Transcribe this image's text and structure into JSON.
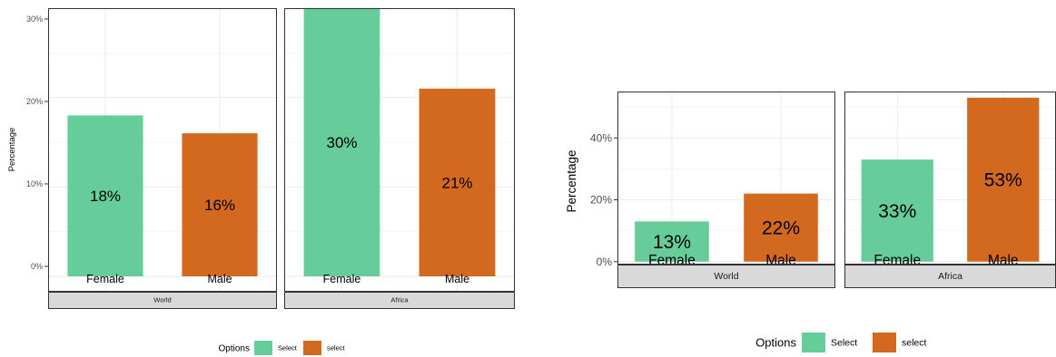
{
  "charts": [
    {
      "chart_data": {
        "type": "bar",
        "ylabel": "Percentage",
        "ylim": [
          0,
          30
        ],
        "yticks": [
          "0%",
          "10%",
          "20%",
          "30%"
        ],
        "ytick_values": [
          0,
          10,
          20,
          30
        ],
        "legend_title": "Options",
        "legend_placement": "bottom",
        "legend": [
          {
            "label": "Select",
            "color": "#66CC99"
          },
          {
            "label": "select",
            "color": "#D2691E"
          }
        ],
        "panels": [
          {
            "strip": "World",
            "categories": [
              "Female",
              "Male"
            ],
            "values": [
              18,
              16
            ],
            "labels": [
              "18%",
              "16%"
            ],
            "colors": [
              "#66CC99",
              "#D2691E"
            ]
          },
          {
            "strip": "Africa",
            "categories": [
              "Female",
              "Male"
            ],
            "values": [
              30,
              21
            ],
            "labels": [
              "30%",
              "21%"
            ],
            "colors": [
              "#66CC99",
              "#D2691E"
            ]
          }
        ]
      }
    },
    {
      "chart_data": {
        "type": "bar",
        "ylabel": "Percentage",
        "ylim": [
          -3,
          55
        ],
        "yticks": [
          "0%",
          "20%",
          "40%"
        ],
        "ytick_values": [
          0,
          20,
          40
        ],
        "legend_title": "Options",
        "legend_placement": "bottom",
        "legend": [
          {
            "label": "Select",
            "color": "#66CC99"
          },
          {
            "label": "select",
            "color": "#D2691E"
          }
        ],
        "panels": [
          {
            "strip": "World",
            "categories": [
              "Female",
              "Male"
            ],
            "values": [
              13,
              22
            ],
            "labels": [
              "13%",
              "22%"
            ],
            "colors": [
              "#66CC99",
              "#D2691E"
            ]
          },
          {
            "strip": "Africa",
            "categories": [
              "Female",
              "Male"
            ],
            "values": [
              33,
              53
            ],
            "labels": [
              "33%",
              "53%"
            ],
            "colors": [
              "#66CC99",
              "#D2691E"
            ]
          }
        ]
      }
    }
  ]
}
